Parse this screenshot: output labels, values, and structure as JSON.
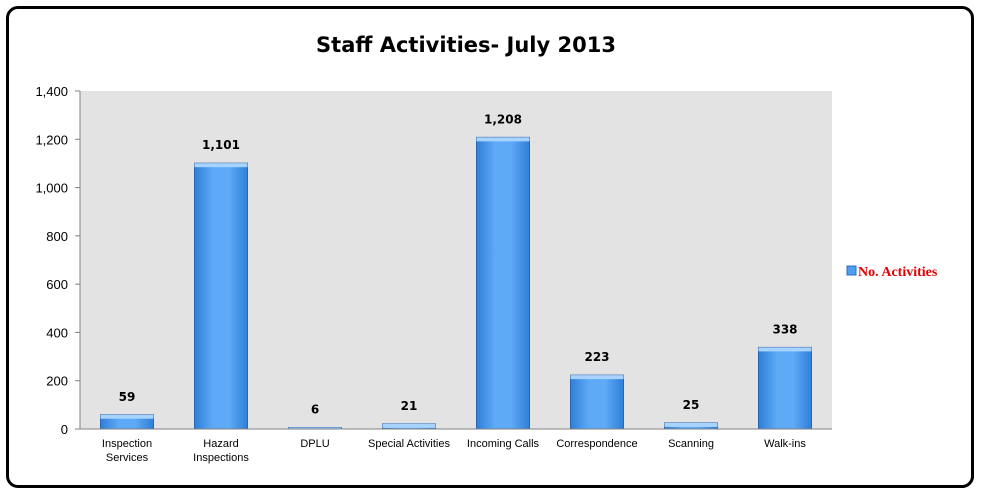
{
  "chart_data": {
    "type": "bar",
    "title": "Staff Activities- July 2013",
    "categories": [
      [
        "Inspection",
        "Services"
      ],
      [
        "Hazard",
        "Inspections"
      ],
      [
        "DPLU"
      ],
      [
        "Special Activities"
      ],
      [
        "Incoming Calls"
      ],
      [
        "Correspondence"
      ],
      [
        "Scanning"
      ],
      [
        "Walk-ins"
      ]
    ],
    "series": [
      {
        "name": "No. Activities",
        "values": [
          59,
          1101,
          6,
          21,
          1208,
          223,
          25,
          338
        ]
      }
    ],
    "data_labels": [
      "59",
      "1,101",
      "6",
      "21",
      "1,208",
      "223",
      "25",
      "338"
    ],
    "ylim": [
      0,
      1400
    ],
    "yticks": [
      0,
      200,
      400,
      600,
      800,
      1000,
      1200,
      1400
    ],
    "ytick_labels": [
      "0",
      "200",
      "400",
      "600",
      "800",
      "1,000",
      "1,200",
      "1,400"
    ],
    "xlabel": "",
    "ylabel": "",
    "grid": false,
    "legend_position": "right",
    "colors": {
      "bar": "#4f9df0",
      "bar_top": "#a9d3ff",
      "plot_bg": "#e3e3e3",
      "legend_text": "#e00000"
    }
  }
}
